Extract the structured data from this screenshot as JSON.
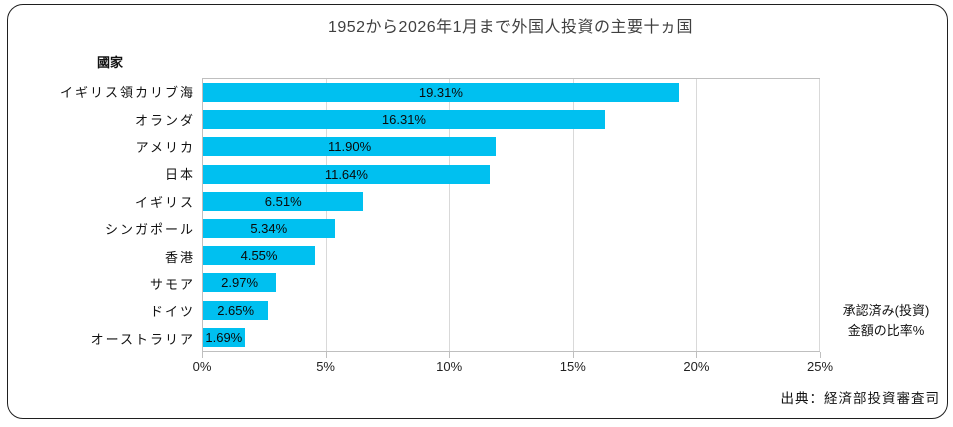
{
  "title": "1952から2026年1月まで外国人投資の主要十ヵ国",
  "axis_header": "國家",
  "annotation": {
    "line1": "承認済み(投資)",
    "line2": "金額の比率%"
  },
  "source": "出典：経済部投資審査司",
  "colors": {
    "bar_fill": "#00c0f0",
    "gridline": "#d9d9d9",
    "plot_border": "#bfbfbf",
    "frame_border": "#1f1f1f",
    "text": "#111111"
  },
  "x_axis": {
    "ticks": [
      "0%",
      "5%",
      "10%",
      "15%",
      "20%",
      "25%"
    ],
    "min": 0,
    "max": 25
  },
  "chart_data": {
    "type": "bar",
    "orientation": "horizontal",
    "title": "1952から2026年1月まで外国人投資の主要十ヵ国",
    "xlabel": "承認済み(投資)金額の比率%",
    "ylabel": "國家",
    "xlim": [
      0,
      25
    ],
    "grid": true,
    "categories": [
      "イギリス領カリブ海",
      "オランダ",
      "アメリカ",
      "日本",
      "イギリス",
      "シンガポール",
      "香港",
      "サモア",
      "ドイツ",
      "オーストラリア"
    ],
    "values": [
      19.31,
      16.31,
      11.9,
      11.64,
      6.51,
      5.34,
      4.55,
      2.97,
      2.65,
      1.69
    ],
    "value_labels": [
      "19.31%",
      "16.31%",
      "11.90%",
      "11.64%",
      "6.51%",
      "5.34%",
      "4.55%",
      "2.97%",
      "2.65%",
      "1.69%"
    ],
    "value_label_position": "inside-center"
  }
}
